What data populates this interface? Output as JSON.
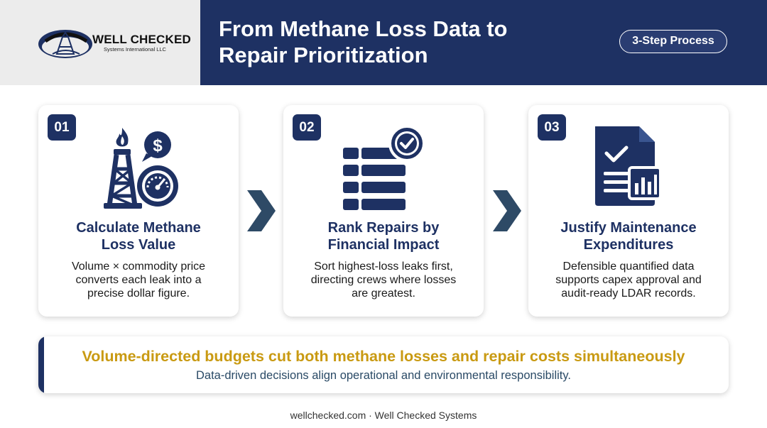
{
  "header": {
    "logo_name": "WELL CHECKED",
    "logo_sub": "Systems International LLC",
    "title": "From Methane Loss Data to\nRepair Prioritization",
    "badge": "3-Step Process"
  },
  "steps": [
    {
      "number": "01",
      "title": "Calculate Methane\nLoss Value",
      "description": "Volume × commodity price\nconverts each leak into a\nprecise dollar figure.",
      "icon": "oil-rig-dollar-gauge-icon"
    },
    {
      "number": "02",
      "title": "Rank Repairs by\nFinancial Impact",
      "description": "Sort highest-loss leaks first,\ndirecting crews where losses\nare greatest.",
      "icon": "ranked-list-check-icon"
    },
    {
      "number": "03",
      "title": "Justify Maintenance\nExpenditures",
      "description": "Defensible quantified data\nsupports capex approval and\naudit-ready LDAR records.",
      "icon": "report-document-chart-icon"
    }
  ],
  "callout": {
    "headline": "Volume-directed budgets cut both methane losses and repair costs simultaneously",
    "subline": "Data-driven decisions align operational and environmental responsibility."
  },
  "footer": "wellchecked.com · Well Checked Systems",
  "colors": {
    "navy": "#1e3163",
    "gold": "#c99a12",
    "arrow": "#2e4a66"
  }
}
